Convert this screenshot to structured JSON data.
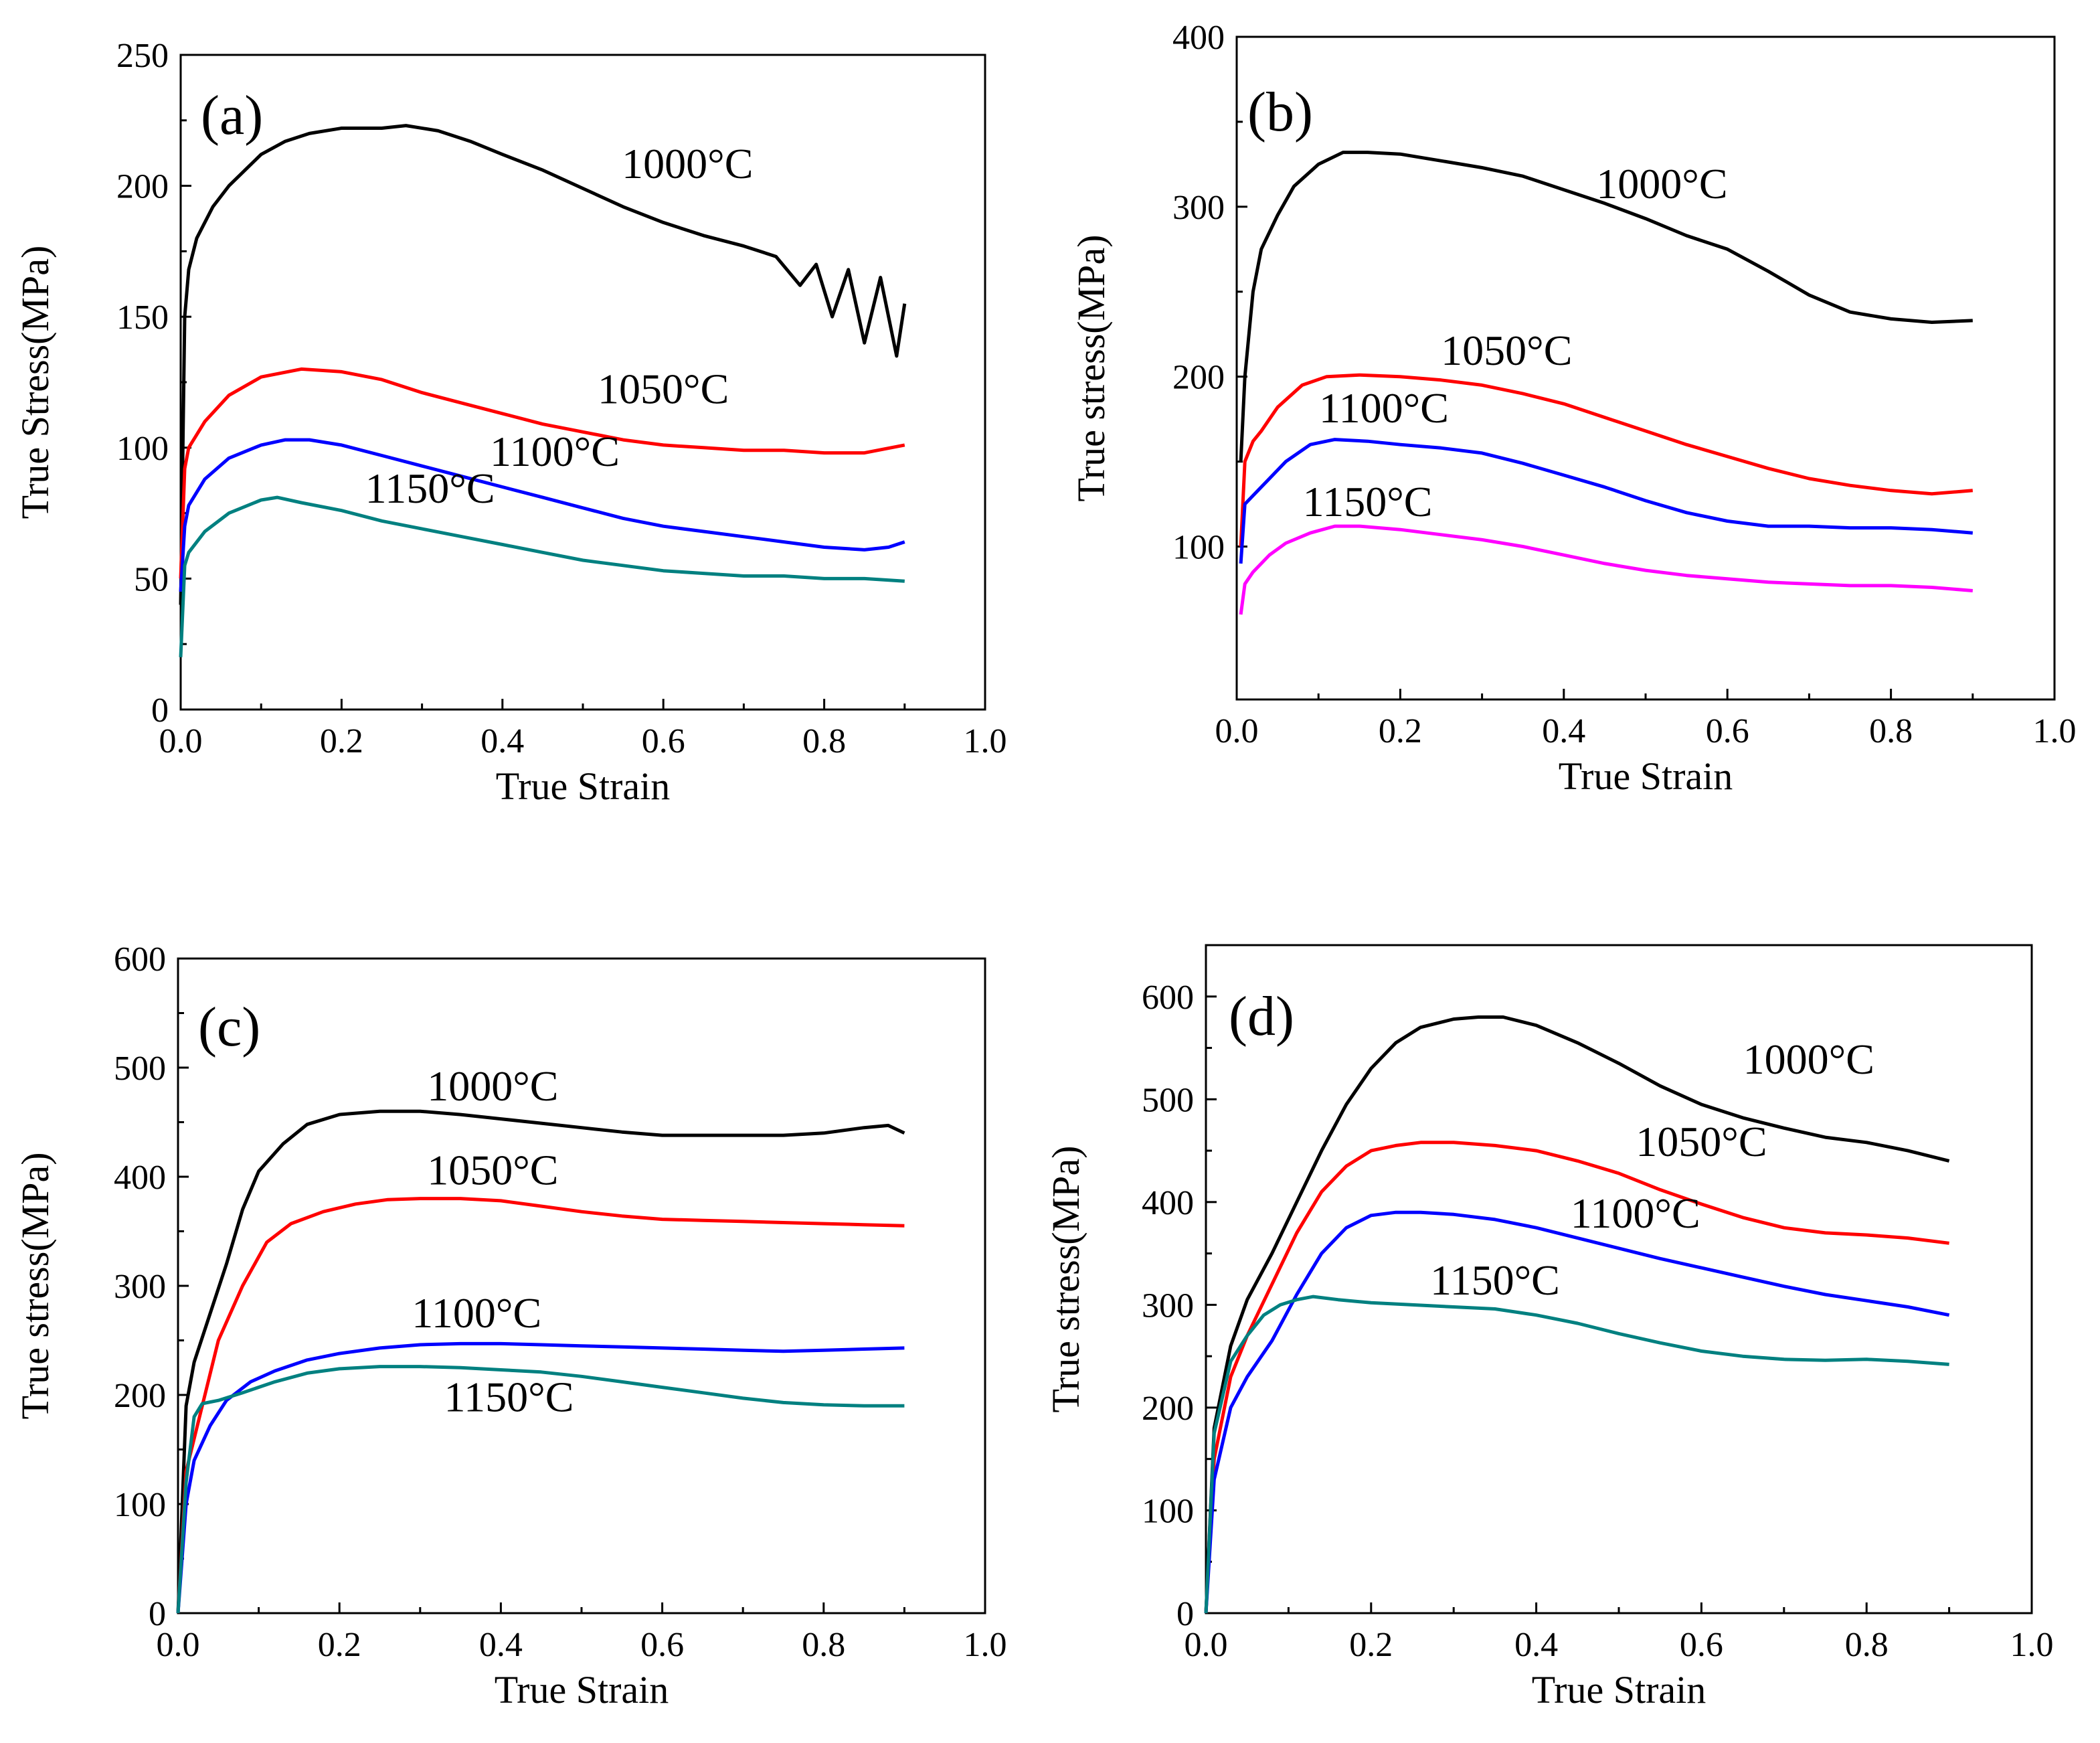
{
  "chart_data": [
    {
      "id": "a",
      "type": "line",
      "panel_label": "(a)",
      "xlabel": "True Strain",
      "ylabel": "True Stress(MPa)",
      "xlim": [
        0,
        1.0
      ],
      "ylim": [
        0,
        250
      ],
      "xticks": [
        "0.0",
        "0.2",
        "0.4",
        "0.6",
        "0.8",
        "1.0"
      ],
      "yticks": [
        "0",
        "50",
        "100",
        "150",
        "200",
        "250"
      ],
      "series": [
        {
          "name": "1000°C",
          "color": "#000000",
          "x": [
            0,
            0.005,
            0.01,
            0.02,
            0.04,
            0.06,
            0.08,
            0.1,
            0.13,
            0.16,
            0.2,
            0.25,
            0.28,
            0.32,
            0.36,
            0.4,
            0.45,
            0.5,
            0.55,
            0.6,
            0.65,
            0.7,
            0.74,
            0.77,
            0.79,
            0.81,
            0.83,
            0.85,
            0.87,
            0.89,
            0.9
          ],
          "y": [
            40,
            150,
            168,
            180,
            192,
            200,
            206,
            212,
            217,
            220,
            222,
            222,
            223,
            221,
            217,
            212,
            206,
            199,
            192,
            186,
            181,
            177,
            173,
            162,
            170,
            150,
            168,
            140,
            165,
            135,
            155
          ]
        },
        {
          "name": "1050°C",
          "color": "#ff0000",
          "x": [
            0,
            0.005,
            0.01,
            0.03,
            0.06,
            0.1,
            0.15,
            0.2,
            0.25,
            0.3,
            0.35,
            0.4,
            0.45,
            0.5,
            0.55,
            0.6,
            0.65,
            0.7,
            0.75,
            0.8,
            0.85,
            0.9
          ],
          "y": [
            50,
            92,
            100,
            110,
            120,
            127,
            130,
            129,
            126,
            121,
            117,
            113,
            109,
            106,
            103,
            101,
            100,
            99,
            99,
            98,
            98,
            101
          ]
        },
        {
          "name": "1100°C",
          "color": "#0000ff",
          "x": [
            0,
            0.005,
            0.01,
            0.03,
            0.06,
            0.1,
            0.13,
            0.16,
            0.2,
            0.25,
            0.3,
            0.35,
            0.4,
            0.45,
            0.5,
            0.55,
            0.6,
            0.65,
            0.7,
            0.75,
            0.8,
            0.85,
            0.88,
            0.9
          ],
          "y": [
            45,
            70,
            78,
            88,
            96,
            101,
            103,
            103,
            101,
            97,
            93,
            89,
            85,
            81,
            77,
            73,
            70,
            68,
            66,
            64,
            62,
            61,
            62,
            64
          ]
        },
        {
          "name": "1150°C",
          "color": "#008080",
          "x": [
            0,
            0.005,
            0.01,
            0.03,
            0.06,
            0.1,
            0.12,
            0.15,
            0.2,
            0.25,
            0.3,
            0.35,
            0.4,
            0.45,
            0.5,
            0.55,
            0.6,
            0.65,
            0.7,
            0.75,
            0.8,
            0.85,
            0.9
          ],
          "y": [
            20,
            55,
            60,
            68,
            75,
            80,
            81,
            79,
            76,
            72,
            69,
            66,
            63,
            60,
            57,
            55,
            53,
            52,
            51,
            51,
            50,
            50,
            49
          ]
        }
      ],
      "annotations": [
        {
          "text": "1000°C",
          "x": 0.63,
          "y": 203
        },
        {
          "text": "1050°C",
          "x": 0.6,
          "y": 117
        },
        {
          "text": "1100°C",
          "x": 0.465,
          "y": 93
        },
        {
          "text": "1150°C",
          "x": 0.31,
          "y": 79
        }
      ]
    },
    {
      "id": "b",
      "type": "line",
      "panel_label": "(b)",
      "xlabel": "True Strain",
      "ylabel": "True stress(MPa)",
      "xlim": [
        0,
        1.0
      ],
      "ylim": [
        10,
        400
      ],
      "xticks": [
        "0.0",
        "0.2",
        "0.4",
        "0.6",
        "0.8",
        "1.0"
      ],
      "yticks": [
        "100",
        "200",
        "300",
        "400"
      ],
      "ytick_values": [
        100,
        200,
        300,
        400
      ],
      "series": [
        {
          "name": "1000°C",
          "color": "#000000",
          "x": [
            0.005,
            0.01,
            0.02,
            0.03,
            0.05,
            0.07,
            0.1,
            0.13,
            0.16,
            0.2,
            0.25,
            0.3,
            0.35,
            0.4,
            0.45,
            0.5,
            0.55,
            0.6,
            0.65,
            0.7,
            0.75,
            0.8,
            0.85,
            0.9
          ],
          "y": [
            150,
            200,
            250,
            275,
            295,
            312,
            325,
            332,
            332,
            331,
            327,
            323,
            318,
            310,
            302,
            293,
            283,
            275,
            262,
            248,
            238,
            234,
            232,
            233
          ]
        },
        {
          "name": "1050°C",
          "color": "#ff0000",
          "x": [
            0.005,
            0.01,
            0.02,
            0.03,
            0.05,
            0.08,
            0.11,
            0.15,
            0.2,
            0.25,
            0.3,
            0.35,
            0.4,
            0.45,
            0.5,
            0.55,
            0.6,
            0.65,
            0.7,
            0.75,
            0.8,
            0.85,
            0.9
          ],
          "y": [
            100,
            150,
            162,
            168,
            182,
            195,
            200,
            201,
            200,
            198,
            195,
            190,
            184,
            176,
            168,
            160,
            153,
            146,
            140,
            136,
            133,
            131,
            133
          ]
        },
        {
          "name": "1100°C",
          "color": "#0000ff",
          "x": [
            0.005,
            0.01,
            0.02,
            0.04,
            0.06,
            0.09,
            0.12,
            0.16,
            0.2,
            0.25,
            0.3,
            0.35,
            0.4,
            0.45,
            0.5,
            0.55,
            0.6,
            0.65,
            0.7,
            0.75,
            0.8,
            0.85,
            0.9
          ],
          "y": [
            90,
            125,
            130,
            140,
            150,
            160,
            163,
            162,
            160,
            158,
            155,
            149,
            142,
            135,
            127,
            120,
            115,
            112,
            112,
            111,
            111,
            110,
            108
          ]
        },
        {
          "name": "1150°C",
          "color": "#ff00ff",
          "x": [
            0.005,
            0.01,
            0.02,
            0.04,
            0.06,
            0.09,
            0.12,
            0.15,
            0.2,
            0.25,
            0.3,
            0.35,
            0.4,
            0.45,
            0.5,
            0.55,
            0.6,
            0.65,
            0.7,
            0.75,
            0.8,
            0.85,
            0.9
          ],
          "y": [
            60,
            78,
            85,
            95,
            102,
            108,
            112,
            112,
            110,
            107,
            104,
            100,
            95,
            90,
            86,
            83,
            81,
            79,
            78,
            77,
            77,
            76,
            74
          ]
        }
      ],
      "annotations": [
        {
          "text": "1000°C",
          "x": 0.52,
          "y": 305
        },
        {
          "text": "1050°C",
          "x": 0.33,
          "y": 207
        },
        {
          "text": "1100°C",
          "x": 0.18,
          "y": 173
        },
        {
          "text": "1150°C",
          "x": 0.16,
          "y": 118
        }
      ]
    },
    {
      "id": "c",
      "type": "line",
      "panel_label": "(c)",
      "xlabel": "True Strain",
      "ylabel": "True stress(MPa)",
      "xlim": [
        0,
        1.0
      ],
      "ylim": [
        0,
        600
      ],
      "xticks": [
        "0.0",
        "0.2",
        "0.4",
        "0.6",
        "0.8",
        "1.0"
      ],
      "yticks": [
        "0",
        "100",
        "200",
        "300",
        "400",
        "500",
        "600"
      ],
      "series": [
        {
          "name": "1000°C",
          "color": "#000000",
          "x": [
            0,
            0.01,
            0.02,
            0.04,
            0.06,
            0.08,
            0.1,
            0.13,
            0.16,
            0.2,
            0.25,
            0.3,
            0.35,
            0.4,
            0.45,
            0.5,
            0.55,
            0.6,
            0.65,
            0.7,
            0.75,
            0.8,
            0.85,
            0.88,
            0.9
          ],
          "y": [
            0,
            190,
            230,
            275,
            320,
            370,
            405,
            430,
            448,
            457,
            460,
            460,
            457,
            453,
            449,
            445,
            441,
            438,
            438,
            438,
            438,
            440,
            445,
            447,
            440
          ]
        },
        {
          "name": "1050°C",
          "color": "#ff0000",
          "x": [
            0,
            0.01,
            0.03,
            0.05,
            0.08,
            0.11,
            0.14,
            0.18,
            0.22,
            0.26,
            0.3,
            0.35,
            0.4,
            0.45,
            0.5,
            0.55,
            0.6,
            0.65,
            0.7,
            0.75,
            0.8,
            0.85,
            0.9
          ],
          "y": [
            0,
            130,
            190,
            250,
            300,
            340,
            357,
            368,
            375,
            379,
            380,
            380,
            378,
            373,
            368,
            364,
            361,
            360,
            359,
            358,
            357,
            356,
            355
          ]
        },
        {
          "name": "1100°C",
          "color": "#0000ff",
          "x": [
            0,
            0.01,
            0.02,
            0.04,
            0.06,
            0.09,
            0.12,
            0.16,
            0.2,
            0.25,
            0.3,
            0.35,
            0.4,
            0.45,
            0.5,
            0.55,
            0.6,
            0.65,
            0.7,
            0.75,
            0.8,
            0.85,
            0.9
          ],
          "y": [
            0,
            100,
            140,
            172,
            195,
            212,
            222,
            232,
            238,
            243,
            246,
            247,
            247,
            246,
            245,
            244,
            243,
            242,
            241,
            240,
            241,
            242,
            243
          ]
        },
        {
          "name": "1150°C",
          "color": "#008080",
          "x": [
            0,
            0.01,
            0.02,
            0.03,
            0.05,
            0.08,
            0.12,
            0.16,
            0.2,
            0.25,
            0.3,
            0.35,
            0.4,
            0.45,
            0.5,
            0.55,
            0.6,
            0.65,
            0.7,
            0.75,
            0.8,
            0.85,
            0.9
          ],
          "y": [
            0,
            120,
            180,
            192,
            195,
            202,
            212,
            220,
            224,
            226,
            226,
            225,
            223,
            221,
            217,
            212,
            207,
            202,
            197,
            193,
            191,
            190,
            190
          ]
        }
      ],
      "annotations": [
        {
          "text": "1000°C",
          "x": 0.39,
          "y": 470
        },
        {
          "text": "1050°C",
          "x": 0.39,
          "y": 393
        },
        {
          "text": "1100°C",
          "x": 0.37,
          "y": 262
        },
        {
          "text": "1150°C",
          "x": 0.41,
          "y": 185
        }
      ]
    },
    {
      "id": "d",
      "type": "line",
      "panel_label": "(d)",
      "xlabel": "True Strain",
      "ylabel": "True stress(MPa)",
      "xlim": [
        0,
        1.0
      ],
      "ylim": [
        0,
        650
      ],
      "xticks": [
        "0.0",
        "0.2",
        "0.4",
        "0.6",
        "0.8",
        "1.0"
      ],
      "yticks": [
        "0",
        "100",
        "200",
        "300",
        "400",
        "500",
        "600"
      ],
      "ytick_values": [
        0,
        100,
        200,
        300,
        400,
        500,
        600
      ],
      "series": [
        {
          "name": "1000°C",
          "color": "#000000",
          "x": [
            0,
            0.01,
            0.03,
            0.05,
            0.08,
            0.11,
            0.14,
            0.17,
            0.2,
            0.23,
            0.26,
            0.3,
            0.33,
            0.36,
            0.4,
            0.45,
            0.5,
            0.55,
            0.6,
            0.65,
            0.7,
            0.75,
            0.8,
            0.85,
            0.9
          ],
          "y": [
            0,
            180,
            260,
            305,
            350,
            400,
            450,
            495,
            530,
            555,
            570,
            578,
            580,
            580,
            572,
            555,
            535,
            513,
            495,
            482,
            472,
            463,
            458,
            450,
            440
          ]
        },
        {
          "name": "1050°C",
          "color": "#ff0000",
          "x": [
            0,
            0.01,
            0.03,
            0.05,
            0.08,
            0.11,
            0.14,
            0.17,
            0.2,
            0.23,
            0.26,
            0.3,
            0.35,
            0.4,
            0.45,
            0.5,
            0.55,
            0.6,
            0.65,
            0.7,
            0.75,
            0.8,
            0.85,
            0.9
          ],
          "y": [
            0,
            150,
            230,
            270,
            320,
            370,
            410,
            435,
            450,
            455,
            458,
            458,
            455,
            450,
            440,
            428,
            412,
            398,
            385,
            375,
            370,
            368,
            365,
            360
          ]
        },
        {
          "name": "1100°C",
          "color": "#0000ff",
          "x": [
            0,
            0.01,
            0.03,
            0.05,
            0.08,
            0.11,
            0.14,
            0.17,
            0.2,
            0.23,
            0.26,
            0.3,
            0.35,
            0.4,
            0.45,
            0.5,
            0.55,
            0.6,
            0.65,
            0.7,
            0.75,
            0.8,
            0.85,
            0.9
          ],
          "y": [
            0,
            130,
            200,
            230,
            265,
            310,
            350,
            375,
            387,
            390,
            390,
            388,
            383,
            375,
            365,
            355,
            345,
            336,
            327,
            318,
            310,
            304,
            298,
            290
          ]
        },
        {
          "name": "1150°C",
          "color": "#008080",
          "x": [
            0,
            0.01,
            0.03,
            0.05,
            0.07,
            0.09,
            0.11,
            0.13,
            0.16,
            0.2,
            0.25,
            0.3,
            0.35,
            0.4,
            0.45,
            0.5,
            0.55,
            0.6,
            0.65,
            0.7,
            0.75,
            0.8,
            0.85,
            0.9
          ],
          "y": [
            0,
            175,
            245,
            270,
            290,
            300,
            305,
            308,
            305,
            302,
            300,
            298,
            296,
            290,
            282,
            272,
            263,
            255,
            250,
            247,
            246,
            247,
            245,
            242
          ]
        }
      ],
      "annotations": [
        {
          "text": "1000°C",
          "x": 0.73,
          "y": 525
        },
        {
          "text": "1050°C",
          "x": 0.6,
          "y": 445
        },
        {
          "text": "1100°C",
          "x": 0.52,
          "y": 375
        },
        {
          "text": "1150°C",
          "x": 0.35,
          "y": 310
        }
      ]
    }
  ]
}
